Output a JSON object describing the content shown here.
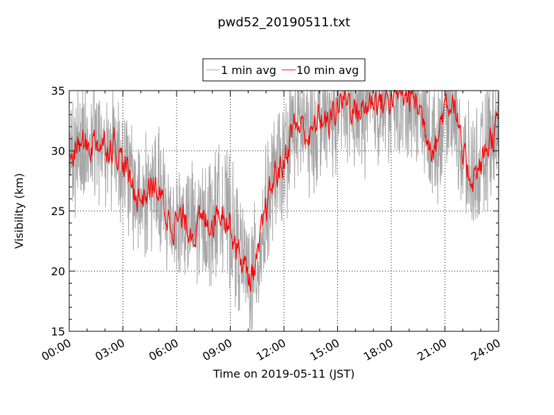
{
  "chart_data": {
    "type": "line",
    "title": "pwd52_20190511.txt",
    "xlabel": "Time on 2019-05-11 (JST)",
    "ylabel": "Visibility (km)",
    "xlim": [
      "00:00",
      "24:00"
    ],
    "ylim": [
      15,
      35
    ],
    "x_ticks": [
      "00:00",
      "03:00",
      "06:00",
      "09:00",
      "12:00",
      "15:00",
      "18:00",
      "21:00",
      "24:00"
    ],
    "y_ticks": [
      "15",
      "20",
      "25",
      "30",
      "35"
    ],
    "grid": true,
    "legend_position": "top-center",
    "legend": [
      "1 min avg",
      "10 min avg"
    ],
    "series": [
      {
        "name": "1 min avg",
        "color": "#a6a6a6",
        "note": "noisy 1-minute series fluctuating roughly ±4 km around the 10-minute average, frequently clipped at 35",
        "x": [
          "00:00",
          "00:30",
          "01:00",
          "01:30",
          "02:00",
          "02:30",
          "03:00",
          "03:30",
          "04:00",
          "04:30",
          "05:00",
          "05:30",
          "06:00",
          "06:30",
          "07:00",
          "07:30",
          "08:00",
          "08:30",
          "09:00",
          "09:30",
          "10:00",
          "10:30",
          "11:00",
          "11:30",
          "12:00",
          "12:30",
          "13:00",
          "13:30",
          "14:00",
          "14:30",
          "15:00",
          "15:30",
          "16:00",
          "16:30",
          "17:00",
          "17:30",
          "18:00",
          "18:30",
          "19:00",
          "19:30",
          "20:00",
          "20:30",
          "21:00",
          "21:30",
          "22:00",
          "22:30",
          "23:00",
          "23:30",
          "24:00"
        ]
      },
      {
        "name": "10 min avg",
        "color": "#ff0000",
        "x": [
          "00:00",
          "00:30",
          "01:00",
          "01:30",
          "02:00",
          "02:30",
          "03:00",
          "03:30",
          "04:00",
          "04:30",
          "05:00",
          "05:30",
          "06:00",
          "06:30",
          "07:00",
          "07:30",
          "08:00",
          "08:30",
          "09:00",
          "09:30",
          "10:00",
          "10:30",
          "11:00",
          "11:30",
          "12:00",
          "12:30",
          "13:00",
          "13:30",
          "14:00",
          "14:30",
          "15:00",
          "15:30",
          "16:00",
          "16:30",
          "17:00",
          "17:30",
          "18:00",
          "18:30",
          "19:00",
          "19:30",
          "20:00",
          "20:30",
          "21:00",
          "21:30",
          "22:00",
          "22:30",
          "23:00",
          "23:30",
          "24:00"
        ],
        "values": [
          29.0,
          30.5,
          30.3,
          31.0,
          30.5,
          30.8,
          29.0,
          27.0,
          26.0,
          27.0,
          26.5,
          24.5,
          24.2,
          24.0,
          23.5,
          24.0,
          24.5,
          25.5,
          24.0,
          21.5,
          19.5,
          20.5,
          25.0,
          28.0,
          29.0,
          32.0,
          32.0,
          31.0,
          33.0,
          32.0,
          34.0,
          34.5,
          33.5,
          33.5,
          34.5,
          34.0,
          34.5,
          34.5,
          34.5,
          34.0,
          31.5,
          30.5,
          34.0,
          34.5,
          29.0,
          28.0,
          28.5,
          31.0,
          32.0
        ]
      }
    ]
  }
}
